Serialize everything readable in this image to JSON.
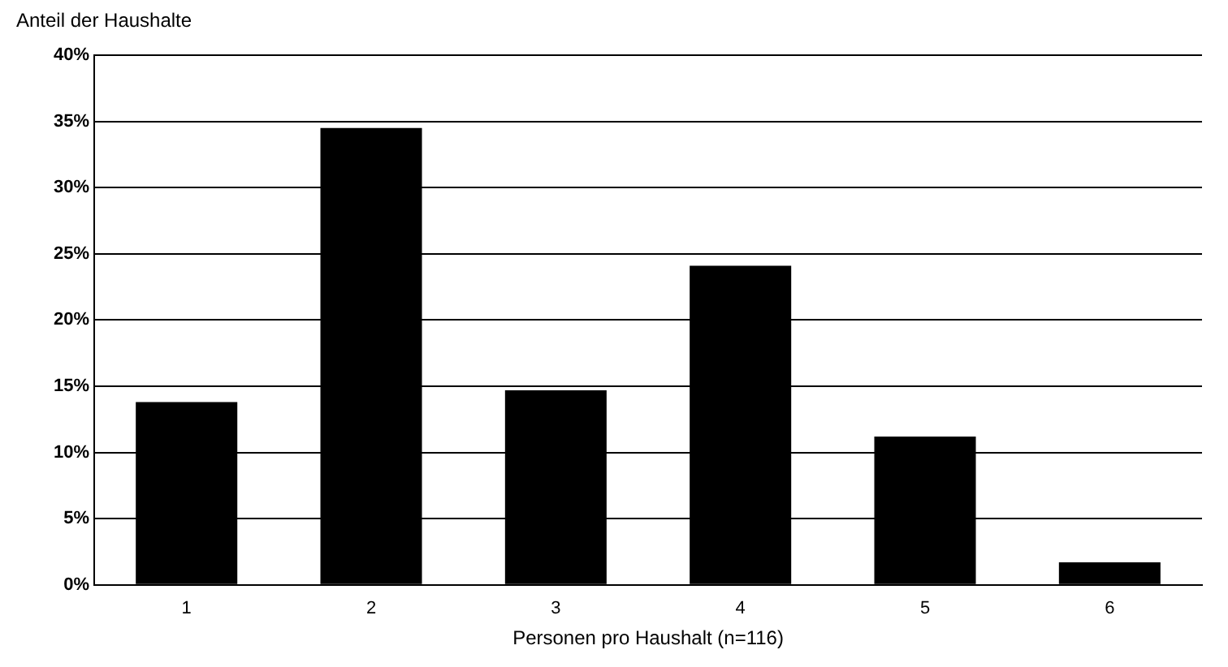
{
  "chart_data": {
    "type": "bar",
    "ylabel": "Anteil der Haushalte",
    "xlabel": "Personen pro Haushalt (n=116)",
    "categories": [
      "1",
      "2",
      "3",
      "4",
      "5",
      "6"
    ],
    "values": [
      13.8,
      34.5,
      14.7,
      24.1,
      11.2,
      1.7
    ],
    "color": "#000000",
    "ylim": [
      0,
      40
    ],
    "yticks": [
      {
        "value": 0,
        "label": "0%"
      },
      {
        "value": 5,
        "label": "5%"
      },
      {
        "value": 10,
        "label": "10%"
      },
      {
        "value": 15,
        "label": "15%"
      },
      {
        "value": 20,
        "label": "20%"
      },
      {
        "value": 25,
        "label": "25%"
      },
      {
        "value": 30,
        "label": "30%"
      },
      {
        "value": 35,
        "label": "35%"
      },
      {
        "value": 40,
        "label": "40%"
      }
    ],
    "grid": "y",
    "legend": false
  }
}
